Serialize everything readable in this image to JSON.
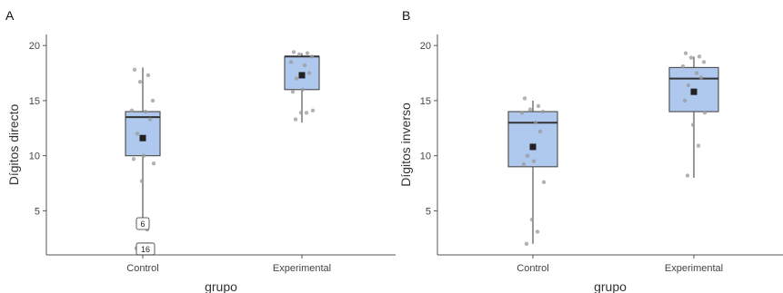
{
  "colors": {
    "box_fill": "#aec8ee",
    "point": "#9a9a9a",
    "mean_marker": "#222222"
  },
  "chart_data": [
    {
      "type": "box",
      "panel_label": "A",
      "xlabel": "grupo",
      "ylabel": "Dígitos directo",
      "categories": [
        "Control",
        "Experimental"
      ],
      "ylim": [
        1,
        21
      ],
      "yticks": [
        5,
        10,
        15,
        20
      ],
      "boxes": [
        {
          "category": "Control",
          "whisker_low": 4,
          "q1": 10,
          "median": 13.5,
          "q3": 14,
          "whisker_high": 18,
          "mean": 11.6
        },
        {
          "category": "Experimental",
          "whisker_low": 13,
          "q1": 16,
          "median": 19,
          "q3": 19,
          "whisker_high": 19.3,
          "mean": 17.3
        }
      ],
      "outlier_labels": [
        {
          "category": "Control",
          "y": 3.8,
          "label": "6"
        },
        {
          "category": "Control",
          "y": 1.5,
          "label": "16"
        }
      ],
      "points": [
        {
          "category": "Control",
          "values": [
            17.8,
            17.3,
            16.7,
            15,
            14.1,
            14,
            13.3,
            12,
            10,
            9.7,
            9.3,
            7.7,
            3.3,
            1.6
          ]
        },
        {
          "category": "Experimental",
          "values": [
            19.4,
            19.3,
            19.2,
            19,
            18.5,
            18.2,
            17.5,
            17,
            16,
            15.8,
            14.1,
            13.9,
            13.9,
            13.3
          ]
        }
      ]
    },
    {
      "type": "box",
      "panel_label": "B",
      "xlabel": "grupo",
      "ylabel": "Dígitos inverso",
      "categories": [
        "Control",
        "Experimental"
      ],
      "ylim": [
        1,
        21
      ],
      "yticks": [
        5,
        10,
        15,
        20
      ],
      "boxes": [
        {
          "category": "Control",
          "whisker_low": 2,
          "q1": 9,
          "median": 13,
          "q3": 14,
          "whisker_high": 15,
          "mean": 10.8
        },
        {
          "category": "Experimental",
          "whisker_low": 8,
          "q1": 14,
          "median": 17,
          "q3": 18,
          "whisker_high": 19,
          "mean": 15.8
        }
      ],
      "outlier_labels": [],
      "points": [
        {
          "category": "Control",
          "values": [
            15.2,
            14.5,
            14.2,
            14,
            13.9,
            13,
            12.2,
            10,
            9.5,
            9.2,
            7.6,
            4.2,
            3.1,
            2
          ]
        },
        {
          "category": "Experimental",
          "values": [
            19.3,
            19,
            18.9,
            18.5,
            18.1,
            17.5,
            17.1,
            16.4,
            15.8,
            15,
            13.9,
            12.8,
            10.9,
            8.2
          ]
        }
      ]
    }
  ]
}
